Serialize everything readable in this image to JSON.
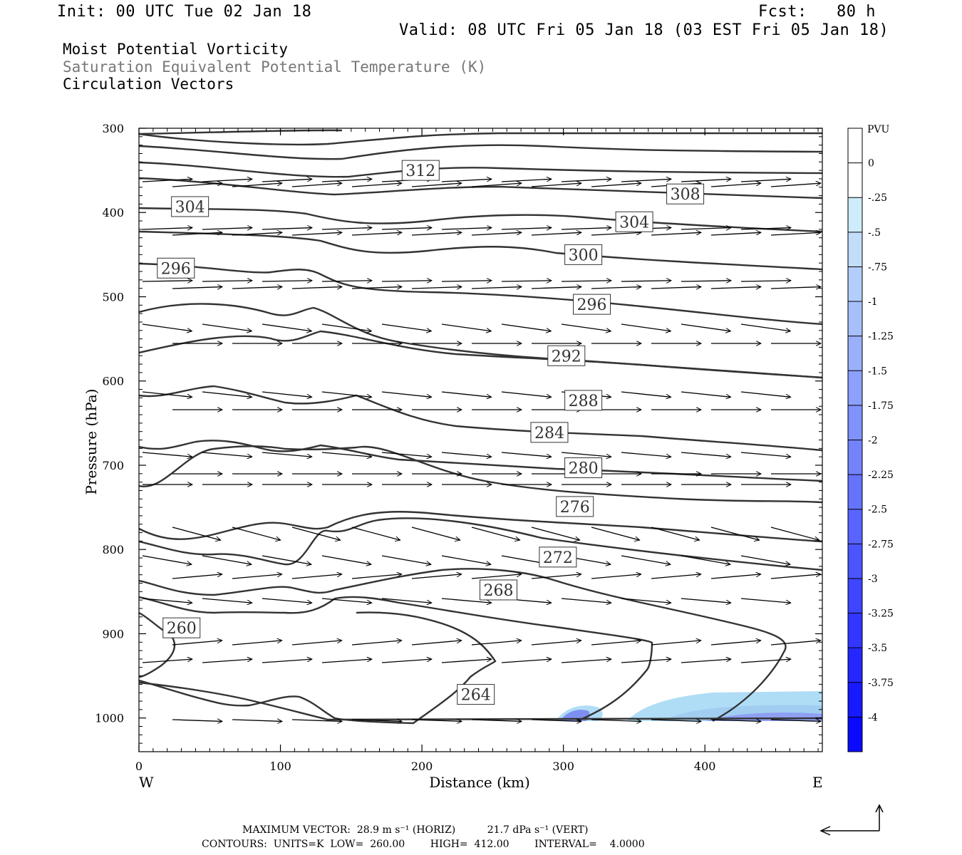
{
  "header": {
    "init": "Init: 00 UTC Tue 02 Jan 18",
    "fcst": "Fcst:   80 h",
    "valid": "Valid: 08 UTC Fri 05 Jan 18 (03 EST Fri 05 Jan 18)"
  },
  "fields": {
    "field1": "Moist Potential Vorticity",
    "field2": "Saturation Equivalent Potential Temperature (K)",
    "field3": "Circulation Vectors"
  },
  "footer": {
    "line1": "MAXIMUM VECTOR:  28.9 m s⁻¹ (HORIZ)          21.7 dPa s⁻¹ (VERT)",
    "line2": "CONTOURS:  UNITS=K  LOW=  260.00        HIGH=  412.00        INTERVAL=    4.0000"
  },
  "colors": {
    "contour": "#333333",
    "frame": "#000000",
    "pv_light": "#b0ddf6",
    "pv_dark": "#3b3bff"
  },
  "chart_data": {
    "type": "cross-section",
    "xlabel": "Distance (km)",
    "ylabel": "Pressure (hPa)",
    "xlim": [
      0,
      483
    ],
    "ylim": [
      1040,
      300
    ],
    "x_ticks": [
      "0",
      "100",
      "200",
      "300",
      "400"
    ],
    "y_ticks": [
      "300",
      "400",
      "500",
      "600",
      "700",
      "800",
      "900",
      "1000"
    ],
    "x_end_labels": {
      "left": "W",
      "right": "E"
    },
    "contour_labels": [
      {
        "label": "312",
        "x": 187,
        "p": 350
      },
      {
        "label": "308",
        "x": 374,
        "p": 378
      },
      {
        "label": "304",
        "x": 24,
        "p": 393
      },
      {
        "label": "304",
        "x": 338,
        "p": 411
      },
      {
        "label": "300",
        "x": 302,
        "p": 450
      },
      {
        "label": "296",
        "x": 14,
        "p": 466
      },
      {
        "label": "296",
        "x": 308,
        "p": 509
      },
      {
        "label": "292",
        "x": 290,
        "p": 570
      },
      {
        "label": "288",
        "x": 302,
        "p": 623
      },
      {
        "label": "284",
        "x": 278,
        "p": 661
      },
      {
        "label": "280",
        "x": 302,
        "p": 703
      },
      {
        "label": "276",
        "x": 296,
        "p": 749
      },
      {
        "label": "272",
        "x": 284,
        "p": 809
      },
      {
        "label": "268",
        "x": 242,
        "p": 848
      },
      {
        "label": "260",
        "x": 18,
        "p": 893
      },
      {
        "label": "264",
        "x": 226,
        "p": 972
      }
    ],
    "colorbar": {
      "units": "PVU",
      "labels": [
        "0",
        "-.25",
        "-.5",
        "-.75",
        "-1",
        "-1.25",
        "-1.5",
        "-1.75",
        "-2",
        "-2.25",
        "-2.5",
        "-2.75",
        "-3",
        "-3.25",
        "-3.5",
        "-3.75",
        "-4"
      ]
    }
  }
}
